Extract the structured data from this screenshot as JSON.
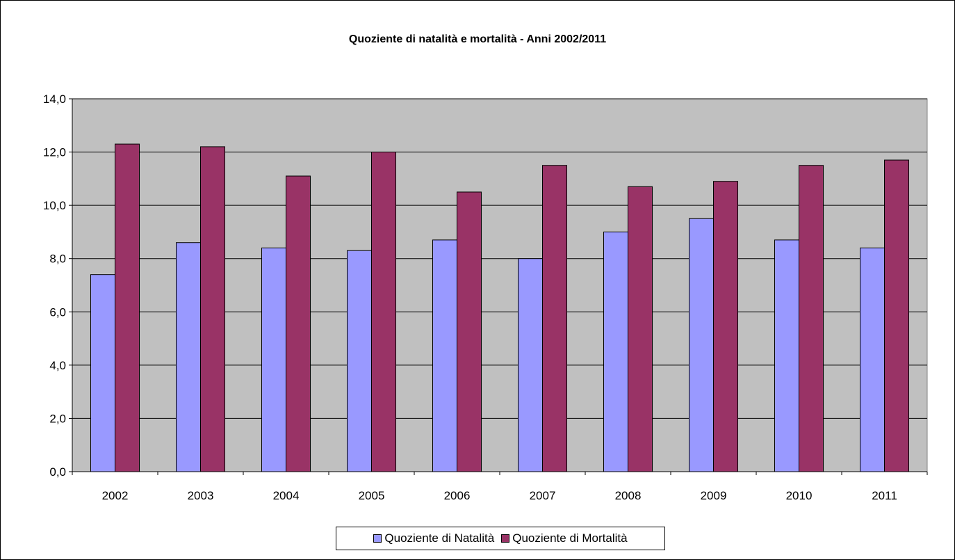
{
  "chart_data": {
    "type": "bar",
    "title": "Quoziente di natalità e mortalità - Anni 2002/2011",
    "xlabel": "",
    "ylabel": "",
    "categories": [
      "2002",
      "2003",
      "2004",
      "2005",
      "2006",
      "2007",
      "2008",
      "2009",
      "2010",
      "2011"
    ],
    "series": [
      {
        "name": "Quoziente di Natalità",
        "color": "#9999ff",
        "values": [
          7.4,
          8.6,
          8.4,
          8.3,
          8.7,
          8.0,
          9.0,
          9.5,
          8.7,
          8.4
        ]
      },
      {
        "name": "Quoziente di Mortalità",
        "color": "#993366",
        "values": [
          12.3,
          12.2,
          11.1,
          12.0,
          10.5,
          11.5,
          10.7,
          10.9,
          11.5,
          11.7
        ]
      }
    ],
    "ylim": [
      0,
      14
    ],
    "yticks": [
      "0,0",
      "2,0",
      "4,0",
      "6,0",
      "8,0",
      "10,0",
      "12,0",
      "14,0"
    ],
    "ytick_values": [
      0,
      2,
      4,
      6,
      8,
      10,
      12,
      14
    ],
    "grid": true,
    "plot_background": "#c0c0c0",
    "legend_position": "bottom"
  }
}
